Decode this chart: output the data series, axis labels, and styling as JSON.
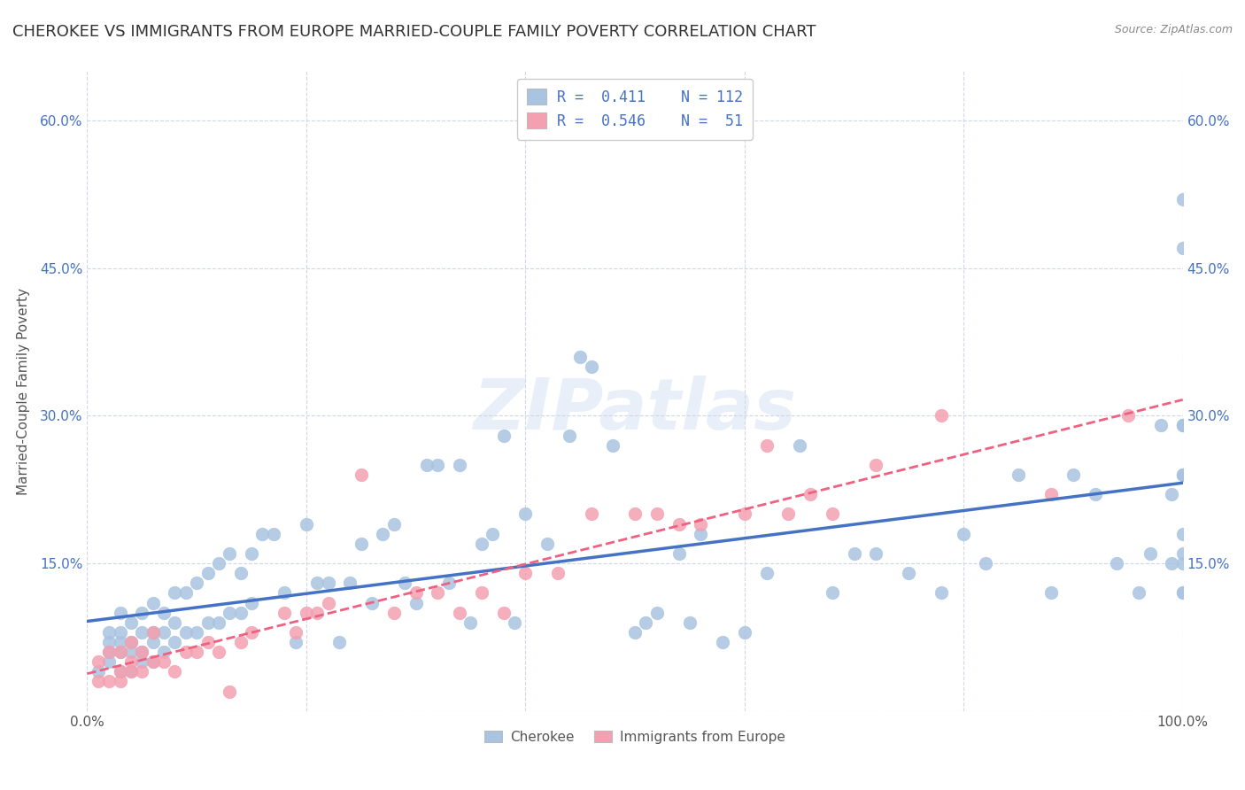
{
  "title": "CHEROKEE VS IMMIGRANTS FROM EUROPE MARRIED-COUPLE FAMILY POVERTY CORRELATION CHART",
  "source": "Source: ZipAtlas.com",
  "ylabel": "Married-Couple Family Poverty",
  "xlim": [
    0,
    1.0
  ],
  "ylim": [
    0,
    0.65
  ],
  "cherokee_color": "#a8c4e0",
  "immigrants_color": "#f4a0b0",
  "cherokee_line_color": "#4472c4",
  "immigrants_line_color": "#f06080",
  "cherokee_R": 0.411,
  "cherokee_N": 112,
  "immigrants_R": 0.546,
  "immigrants_N": 51,
  "legend_labels": [
    "Cherokee",
    "Immigrants from Europe"
  ],
  "watermark": "ZIPatlas",
  "background_color": "#ffffff",
  "grid_color": "#d0d8e8",
  "cherokee_x": [
    0.01,
    0.02,
    0.02,
    0.02,
    0.02,
    0.03,
    0.03,
    0.03,
    0.03,
    0.03,
    0.04,
    0.04,
    0.04,
    0.04,
    0.05,
    0.05,
    0.05,
    0.05,
    0.06,
    0.06,
    0.06,
    0.06,
    0.07,
    0.07,
    0.07,
    0.08,
    0.08,
    0.08,
    0.09,
    0.09,
    0.1,
    0.1,
    0.11,
    0.11,
    0.12,
    0.12,
    0.13,
    0.13,
    0.14,
    0.14,
    0.15,
    0.15,
    0.16,
    0.17,
    0.18,
    0.19,
    0.2,
    0.21,
    0.22,
    0.23,
    0.24,
    0.25,
    0.26,
    0.27,
    0.28,
    0.29,
    0.3,
    0.31,
    0.32,
    0.33,
    0.34,
    0.35,
    0.36,
    0.37,
    0.38,
    0.39,
    0.4,
    0.42,
    0.44,
    0.45,
    0.46,
    0.48,
    0.5,
    0.51,
    0.52,
    0.54,
    0.55,
    0.56,
    0.58,
    0.6,
    0.62,
    0.65,
    0.68,
    0.7,
    0.72,
    0.75,
    0.78,
    0.8,
    0.82,
    0.85,
    0.88,
    0.9,
    0.92,
    0.94,
    0.96,
    0.97,
    0.98,
    0.99,
    0.99,
    1.0,
    1.0,
    1.0,
    1.0,
    1.0,
    1.0,
    1.0,
    1.0,
    1.0,
    1.0,
    1.0,
    1.0,
    1.0
  ],
  "cherokee_y": [
    0.04,
    0.05,
    0.06,
    0.07,
    0.08,
    0.04,
    0.06,
    0.07,
    0.08,
    0.1,
    0.04,
    0.06,
    0.07,
    0.09,
    0.05,
    0.06,
    0.08,
    0.1,
    0.05,
    0.07,
    0.08,
    0.11,
    0.06,
    0.08,
    0.1,
    0.07,
    0.09,
    0.12,
    0.08,
    0.12,
    0.08,
    0.13,
    0.09,
    0.14,
    0.09,
    0.15,
    0.1,
    0.16,
    0.1,
    0.14,
    0.11,
    0.16,
    0.18,
    0.18,
    0.12,
    0.07,
    0.19,
    0.13,
    0.13,
    0.07,
    0.13,
    0.17,
    0.11,
    0.18,
    0.19,
    0.13,
    0.11,
    0.25,
    0.25,
    0.13,
    0.25,
    0.09,
    0.17,
    0.18,
    0.28,
    0.09,
    0.2,
    0.17,
    0.28,
    0.36,
    0.35,
    0.27,
    0.08,
    0.09,
    0.1,
    0.16,
    0.09,
    0.18,
    0.07,
    0.08,
    0.14,
    0.27,
    0.12,
    0.16,
    0.16,
    0.14,
    0.12,
    0.18,
    0.15,
    0.24,
    0.12,
    0.24,
    0.22,
    0.15,
    0.12,
    0.16,
    0.29,
    0.15,
    0.22,
    0.24,
    0.29,
    0.12,
    0.24,
    0.15,
    0.18,
    0.12,
    0.29,
    0.16,
    0.24,
    0.29,
    0.52,
    0.47
  ],
  "immigrants_x": [
    0.01,
    0.01,
    0.02,
    0.02,
    0.03,
    0.03,
    0.03,
    0.04,
    0.04,
    0.04,
    0.05,
    0.05,
    0.06,
    0.06,
    0.07,
    0.08,
    0.09,
    0.1,
    0.11,
    0.12,
    0.13,
    0.14,
    0.15,
    0.18,
    0.19,
    0.2,
    0.21,
    0.22,
    0.25,
    0.28,
    0.3,
    0.32,
    0.34,
    0.36,
    0.38,
    0.4,
    0.43,
    0.46,
    0.5,
    0.52,
    0.54,
    0.56,
    0.6,
    0.62,
    0.64,
    0.66,
    0.68,
    0.72,
    0.78,
    0.88,
    0.95
  ],
  "immigrants_y": [
    0.03,
    0.05,
    0.03,
    0.06,
    0.03,
    0.04,
    0.06,
    0.04,
    0.05,
    0.07,
    0.04,
    0.06,
    0.05,
    0.08,
    0.05,
    0.04,
    0.06,
    0.06,
    0.07,
    0.06,
    0.02,
    0.07,
    0.08,
    0.1,
    0.08,
    0.1,
    0.1,
    0.11,
    0.24,
    0.1,
    0.12,
    0.12,
    0.1,
    0.12,
    0.1,
    0.14,
    0.14,
    0.2,
    0.2,
    0.2,
    0.19,
    0.19,
    0.2,
    0.27,
    0.2,
    0.22,
    0.2,
    0.25,
    0.3,
    0.22,
    0.3
  ]
}
